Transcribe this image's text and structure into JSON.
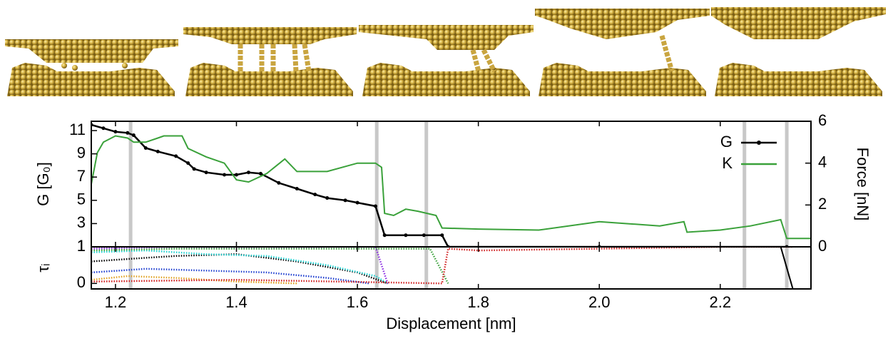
{
  "chart_data": [
    {
      "type": "line",
      "ylabel": "G [G₀]",
      "y2label": "Force [nN]",
      "xlim": [
        1.16,
        2.35
      ],
      "ylim": [
        1,
        11.8
      ],
      "yticks": [
        1,
        3,
        5,
        7,
        9,
        11
      ],
      "y2lim": [
        0,
        6
      ],
      "y2ticks": [
        0,
        2,
        4,
        6
      ],
      "vlines": [
        1.225,
        1.632,
        1.714,
        2.24,
        2.31
      ],
      "vline_color": "#c8c8c8",
      "legend": "upper right",
      "series": [
        {
          "name": "G",
          "color": "#000000",
          "marker": true,
          "x": [
            1.16,
            1.18,
            1.2,
            1.22,
            1.23,
            1.25,
            1.27,
            1.3,
            1.32,
            1.33,
            1.35,
            1.38,
            1.4,
            1.42,
            1.44,
            1.47,
            1.5,
            1.53,
            1.55,
            1.58,
            1.6,
            1.63,
            1.645,
            1.68,
            1.71,
            1.74,
            1.75,
            2.0,
            2.31
          ],
          "values": [
            11.5,
            11.2,
            10.9,
            10.8,
            10.6,
            9.5,
            9.2,
            8.8,
            8.2,
            7.7,
            7.4,
            7.2,
            7.2,
            7.4,
            7.3,
            6.5,
            6.0,
            5.5,
            5.2,
            5.0,
            4.8,
            4.5,
            2.0,
            2.0,
            2.0,
            2.0,
            1.0,
            1.0,
            1.0
          ]
        },
        {
          "name": "K",
          "color": "#3aa13a",
          "marker": false,
          "axis": "y2",
          "x": [
            1.16,
            1.17,
            1.18,
            1.2,
            1.22,
            1.23,
            1.25,
            1.27,
            1.28,
            1.31,
            1.32,
            1.35,
            1.38,
            1.4,
            1.42,
            1.45,
            1.48,
            1.5,
            1.55,
            1.6,
            1.63,
            1.64,
            1.645,
            1.66,
            1.68,
            1.7,
            1.73,
            1.74,
            1.8,
            1.9,
            2.0,
            2.05,
            2.1,
            2.14,
            2.145,
            2.2,
            2.25,
            2.3,
            2.31,
            2.35
          ],
          "values": [
            3.0,
            4.5,
            5.0,
            5.3,
            5.2,
            5.0,
            5.0,
            5.2,
            5.3,
            5.3,
            4.7,
            4.3,
            4.0,
            3.2,
            3.1,
            3.5,
            4.2,
            3.6,
            3.6,
            4.0,
            4.0,
            3.8,
            1.6,
            1.5,
            1.8,
            1.7,
            1.5,
            0.9,
            0.85,
            0.8,
            1.2,
            1.1,
            1.0,
            1.2,
            0.7,
            0.8,
            1.0,
            1.3,
            0.4,
            0.4
          ]
        }
      ]
    },
    {
      "type": "line",
      "ylabel": "τᵢ",
      "xlabel": "Displacement [nm]",
      "xlim": [
        1.16,
        2.35
      ],
      "ylim": [
        -0.15,
        1
      ],
      "yticks": [
        0,
        1
      ],
      "xticks": [
        1.2,
        1.4,
        1.6,
        1.8,
        {
          "value": 2,
          "label": "2.0"
        },
        2.2
      ],
      "series": [
        {
          "color": "#000000",
          "dotted": true,
          "x": [
            1.16,
            1.25,
            1.3,
            1.4,
            1.5,
            1.6,
            1.65
          ],
          "values": [
            0.6,
            0.7,
            0.75,
            0.8,
            0.6,
            0.3,
            0
          ]
        },
        {
          "color": "#22d3d3",
          "dotted": true,
          "x": [
            1.16,
            1.25,
            1.35,
            1.45,
            1.55,
            1.63,
            1.65
          ],
          "values": [
            0.85,
            0.9,
            0.8,
            0.75,
            0.5,
            0.2,
            0
          ]
        },
        {
          "color": "#8a2be2",
          "dotted": true,
          "x": [
            1.16,
            1.3,
            1.45,
            1.55,
            1.63,
            1.65
          ],
          "values": [
            0.95,
            1,
            0.95,
            1,
            1,
            0
          ]
        },
        {
          "color": "#3aa13a",
          "dotted": true,
          "x": [
            1.16,
            1.3,
            1.5,
            1.6,
            1.72,
            1.75
          ],
          "values": [
            0.9,
            0.95,
            0.95,
            0.95,
            0.95,
            0
          ]
        },
        {
          "color": "#2040d0",
          "dotted": true,
          "x": [
            1.16,
            1.25,
            1.35,
            1.45,
            1.55,
            1.62
          ],
          "values": [
            0.3,
            0.4,
            0.35,
            0.3,
            0.15,
            0
          ]
        },
        {
          "color": "#e0a020",
          "dotted": true,
          "x": [
            1.16,
            1.22,
            1.3,
            1.4,
            1.5
          ],
          "values": [
            0.1,
            0.2,
            0.15,
            0.05,
            0
          ]
        },
        {
          "color": "#d02020",
          "dotted": true,
          "x": [
            1.16,
            1.4,
            1.74,
            1.75,
            1.8,
            2.0,
            2.2,
            2.31,
            2.32
          ],
          "values": [
            0.05,
            0.1,
            0,
            0.95,
            0.9,
            0.95,
            1,
            1,
            1
          ]
        },
        {
          "color": "#000000",
          "dotted": false,
          "x": [
            1.74,
            1.75,
            2.3,
            2.32
          ],
          "values": [
            1,
            1,
            1,
            -0.15
          ]
        }
      ]
    }
  ]
}
